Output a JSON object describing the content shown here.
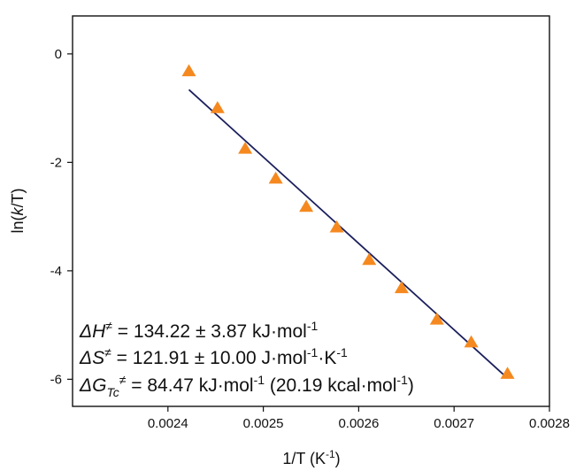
{
  "chart_data": {
    "type": "scatter",
    "title": "",
    "xlabel": "1/T (K-1)",
    "ylabel": "ln(k/T)",
    "xlim": [
      0.0023,
      0.0028
    ],
    "ylim": [
      -6.5,
      0.7
    ],
    "x_ticks": [
      0.0024,
      0.0025,
      0.0026,
      0.0027,
      0.0028
    ],
    "x_tick_labels": [
      "0.0024",
      "0.0025",
      "0.0026",
      "0.0027",
      "0.0028"
    ],
    "y_ticks": [
      0,
      -2,
      -4,
      -6
    ],
    "y_tick_labels": [
      "0",
      "-2",
      "-4",
      "-6"
    ],
    "grid": false,
    "marker_color": "#F5891F",
    "line_color": "#1B1F5C",
    "series": [
      {
        "marker": "triangle",
        "x": [
          0.002422,
          0.002452,
          0.002481,
          0.002513,
          0.002545,
          0.002577,
          0.002611,
          0.002645,
          0.002682,
          0.002718,
          0.002756
        ],
        "y": [
          -0.32,
          -1.0,
          -1.75,
          -2.3,
          -2.82,
          -3.2,
          -3.8,
          -4.32,
          -4.9,
          -5.32,
          -5.9
        ]
      }
    ],
    "fit_line": {
      "x": [
        0.002422,
        0.002756
      ],
      "y": [
        -0.66,
        -5.98
      ]
    },
    "annotations": {
      "enthalpy": {
        "prefix": "ΔH",
        "sup": "≠",
        "text": " = 134.22 ± 3.87 kJ·mol",
        "unit_sup": "-1"
      },
      "entropy": {
        "prefix": "ΔS",
        "sup": "≠",
        "text": " = 121.91 ± 10.00 J·mol",
        "unit_sup1": "-1",
        "text2": "·K",
        "unit_sup2": "-1"
      },
      "gibbs": {
        "prefix": "ΔG",
        "sub": "Tc",
        "sup": "≠",
        "text": " = 84.47 kJ·mol",
        "unit_sup1": "-1",
        "text2": " (20.19 kcal·mol",
        "unit_sup2": "-1",
        "text3": ")"
      }
    },
    "xlabel_parts": {
      "main": "1/T (K",
      "sup": "-1",
      "end": ")"
    },
    "ylabel_parts": {
      "pre": "ln(",
      "ital": "k",
      "post": "/T)"
    }
  }
}
